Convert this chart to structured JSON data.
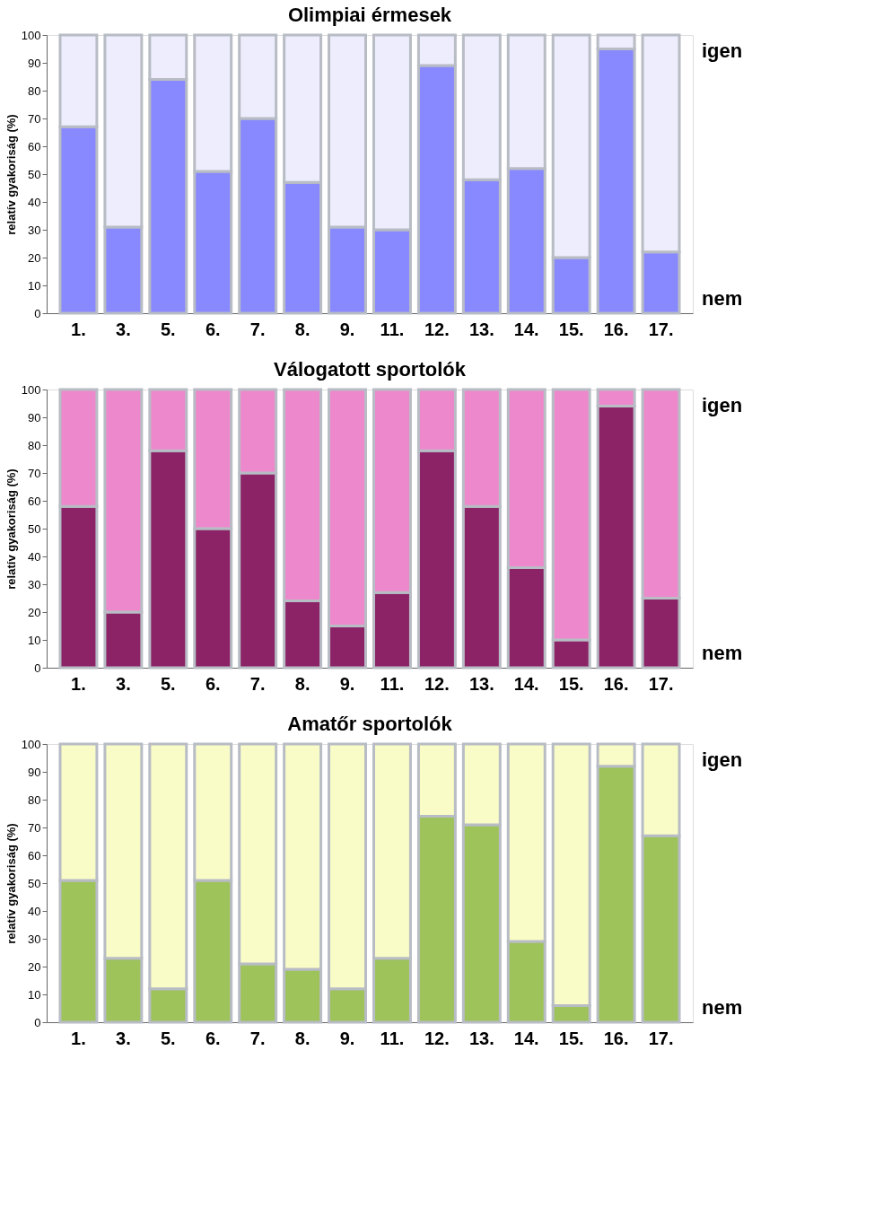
{
  "chart_data": [
    {
      "type": "bar",
      "title": "Olimpiai érmesek",
      "ylabel": "relatív gyakoriság (%)",
      "categories": [
        "1.",
        "3.",
        "5.",
        "6.",
        "7.",
        "8.",
        "9.",
        "11.",
        "12.",
        "13.",
        "14.",
        "15.",
        "16.",
        "17."
      ],
      "stacked": true,
      "ylim": [
        0,
        100
      ],
      "yticks": [
        0,
        10,
        20,
        30,
        40,
        50,
        60,
        70,
        80,
        90,
        100
      ],
      "grid": false,
      "legend": false,
      "series": [
        {
          "name": "nem",
          "color": "#8888ff",
          "values": [
            67,
            31,
            84,
            51,
            70,
            47,
            31,
            30,
            89,
            48,
            52,
            20,
            95,
            22
          ]
        },
        {
          "name": "igen",
          "color": "#ededfd",
          "values": [
            33,
            69,
            16,
            49,
            30,
            53,
            69,
            70,
            11,
            52,
            48,
            80,
            5,
            78
          ]
        }
      ]
    },
    {
      "type": "bar",
      "title": "Válogatott sportolók",
      "ylabel": "relatív gyakoriság (%)",
      "categories": [
        "1.",
        "3.",
        "5.",
        "6.",
        "7.",
        "8.",
        "9.",
        "11.",
        "12.",
        "13.",
        "14.",
        "15.",
        "16.",
        "17."
      ],
      "stacked": true,
      "ylim": [
        0,
        100
      ],
      "yticks": [
        0,
        10,
        20,
        30,
        40,
        50,
        60,
        70,
        80,
        90,
        100
      ],
      "grid": false,
      "legend": false,
      "series": [
        {
          "name": "nem",
          "color": "#8b2366",
          "values": [
            58,
            20,
            78,
            50,
            70,
            24,
            15,
            27,
            78,
            58,
            36,
            10,
            94,
            25
          ]
        },
        {
          "name": "igen",
          "color": "#ee88cc",
          "values": [
            42,
            80,
            22,
            50,
            30,
            76,
            85,
            73,
            22,
            42,
            64,
            90,
            6,
            75
          ]
        }
      ]
    },
    {
      "type": "bar",
      "title": "Amatőr sportolók",
      "ylabel": "relatív gyakoriság (%)",
      "categories": [
        "1.",
        "3.",
        "5.",
        "6.",
        "7.",
        "8.",
        "9.",
        "11.",
        "12.",
        "13.",
        "14.",
        "15.",
        "16.",
        "17."
      ],
      "stacked": true,
      "ylim": [
        0,
        100
      ],
      "yticks": [
        0,
        10,
        20,
        30,
        40,
        50,
        60,
        70,
        80,
        90,
        100
      ],
      "grid": false,
      "legend": false,
      "series": [
        {
          "name": "nem",
          "color": "#9dc35a",
          "values": [
            51,
            23,
            12,
            51,
            21,
            19,
            12,
            23,
            74,
            71,
            29,
            6,
            92,
            67
          ]
        },
        {
          "name": "igen",
          "color": "#fafcc8",
          "values": [
            49,
            77,
            88,
            49,
            79,
            81,
            88,
            77,
            26,
            29,
            71,
            94,
            8,
            33
          ]
        }
      ]
    }
  ]
}
